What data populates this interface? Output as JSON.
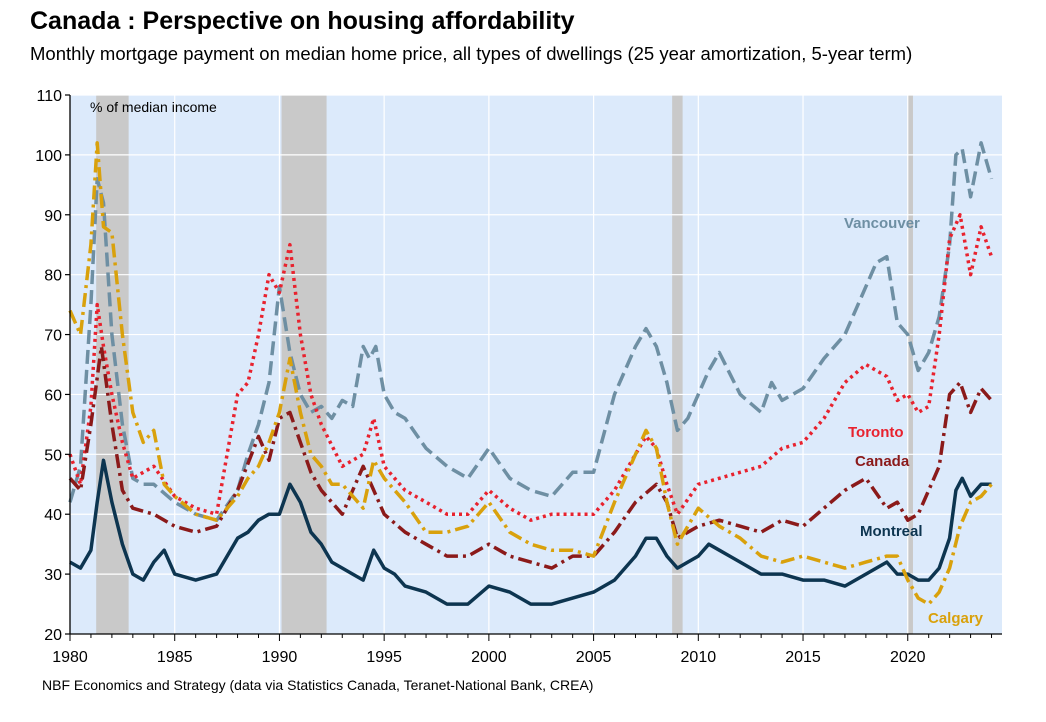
{
  "title": "Canada : Perspective on housing affordability",
  "subtitle": "Monthly mortgage payment on median home price, all types of dwellings (25 year amortization, 5-year term)",
  "source": "NBF Economics and Strategy (data via Statistics Canada, Teranet-National Bank, CREA)",
  "colors": {
    "background": "#dceafb",
    "recession": "#c9c9c9",
    "grid": "#ffffff",
    "vancouver": "#6e8fa3",
    "toronto": "#e8222e",
    "canada": "#8b1a1a",
    "montreal": "#0d3550",
    "calgary": "#d9a10c"
  },
  "chart_data": {
    "type": "line",
    "title": "Canada : Perspective on housing affordability",
    "subtitle": "Monthly mortgage payment on median home price, all types of dwellings (25 year amortization, 5-year term)",
    "ylabel": "% of median income",
    "xlim": [
      1980,
      2024.5
    ],
    "ylim": [
      20,
      110
    ],
    "x_ticks": [
      "1980",
      "1985",
      "1990",
      "1995",
      "2000",
      "2005",
      "2010",
      "2015",
      "2020"
    ],
    "y_ticks": [
      "20",
      "30",
      "40",
      "50",
      "60",
      "70",
      "80",
      "90",
      "100",
      "110"
    ],
    "grid": true,
    "recessions": [
      [
        1981.25,
        1982.8
      ],
      [
        1990.1,
        1992.25
      ],
      [
        2008.75,
        2009.25
      ],
      [
        2020.0,
        2020.25
      ]
    ],
    "series": [
      {
        "name": "Vancouver",
        "color_key": "vancouver",
        "style": "dashed",
        "x": [
          1980,
          1980.5,
          1981,
          1981.3,
          1981.6,
          1982,
          1982.5,
          1983,
          1983.5,
          1984,
          1985,
          1986,
          1987,
          1988,
          1988.5,
          1989,
          1989.5,
          1990,
          1990.5,
          1991,
          1991.5,
          1992,
          1992.5,
          1993,
          1993.5,
          1994,
          1994.3,
          1994.6,
          1995,
          1995.5,
          1996,
          1997,
          1998,
          1999,
          2000,
          2001,
          2002,
          2003,
          2004,
          2005,
          2006,
          2007,
          2007.5,
          2008,
          2008.5,
          2009,
          2009.5,
          2010,
          2010.5,
          2011,
          2012,
          2013,
          2013.5,
          2014,
          2015,
          2016,
          2017,
          2018,
          2018.5,
          2019,
          2019.5,
          2020,
          2020.5,
          2021,
          2021.5,
          2022,
          2022.3,
          2022.6,
          2023,
          2023.5,
          2024
        ],
        "y": [
          42,
          48,
          75,
          96,
          92,
          70,
          55,
          46,
          45,
          45,
          42,
          40,
          39,
          44,
          50,
          55,
          62,
          78,
          67,
          60,
          57,
          58,
          56,
          59,
          58,
          68,
          66,
          68,
          60,
          57,
          56,
          51,
          48,
          46,
          51,
          46,
          44,
          43,
          47,
          47,
          60,
          68,
          71,
          68,
          62,
          54,
          56,
          60,
          64,
          67,
          60,
          57,
          62,
          59,
          61,
          66,
          70,
          78,
          82,
          83,
          72,
          70,
          64,
          67,
          73,
          85,
          100,
          101,
          93,
          102,
          96
        ]
      },
      {
        "name": "Toronto",
        "color_key": "toronto",
        "style": "dotted",
        "x": [
          1980,
          1980.5,
          1981,
          1981.3,
          1981.6,
          1982,
          1982.5,
          1983,
          1983.5,
          1984,
          1985,
          1986,
          1987,
          1988,
          1988.5,
          1989,
          1989.5,
          1990,
          1990.5,
          1991,
          1991.5,
          1992,
          1993,
          1994,
          1994.5,
          1995,
          1996,
          1997,
          1998,
          1999,
          2000,
          2001,
          2002,
          2003,
          2004,
          2005,
          2006,
          2007,
          2007.5,
          2008,
          2008.5,
          2009,
          2010,
          2011,
          2012,
          2013,
          2014,
          2015,
          2016,
          2017,
          2018,
          2019,
          2019.5,
          2020,
          2020.5,
          2021,
          2021.5,
          2022,
          2022.5,
          2023,
          2023.5,
          2024
        ],
        "y": [
          50,
          45,
          58,
          75,
          68,
          60,
          52,
          46,
          47,
          48,
          43,
          41,
          40,
          60,
          62,
          70,
          80,
          77,
          85,
          70,
          60,
          55,
          48,
          50,
          56,
          48,
          44,
          42,
          40,
          40,
          44,
          41,
          39,
          40,
          40,
          40,
          44,
          50,
          53,
          51,
          45,
          40,
          45,
          46,
          47,
          48,
          51,
          52,
          56,
          62,
          65,
          63,
          59,
          60,
          57,
          58,
          70,
          86,
          90,
          80,
          88,
          83
        ]
      },
      {
        "name": "Canada",
        "color_key": "canada",
        "style": "dashdot",
        "x": [
          1980,
          1980.5,
          1981,
          1981.5,
          1982,
          1982.5,
          1983,
          1984,
          1985,
          1986,
          1987,
          1988,
          1989,
          1989.5,
          1990,
          1990.5,
          1991,
          1991.5,
          1992,
          1993,
          1994,
          1995,
          1996,
          1997,
          1998,
          1999,
          2000,
          2001,
          2002,
          2003,
          2004,
          2005,
          2006,
          2007,
          2008,
          2008.5,
          2009,
          2010,
          2011,
          2012,
          2013,
          2014,
          2015,
          2016,
          2017,
          2018,
          2019,
          2019.5,
          2020,
          2020.5,
          2021,
          2021.5,
          2022,
          2022.5,
          2023,
          2023.5,
          2024
        ],
        "y": [
          46,
          44,
          55,
          68,
          55,
          44,
          41,
          40,
          38,
          37,
          38,
          44,
          53,
          49,
          56,
          57,
          52,
          47,
          44,
          40,
          48,
          40,
          37,
          35,
          33,
          33,
          35,
          33,
          32,
          31,
          33,
          33,
          37,
          42,
          45,
          42,
          36,
          38,
          39,
          38,
          37,
          39,
          38,
          41,
          44,
          46,
          41,
          42,
          39,
          40,
          44,
          48,
          60,
          62,
          57,
          61,
          59
        ]
      },
      {
        "name": "Montreal",
        "color_key": "montreal",
        "style": "solid",
        "x": [
          1980,
          1980.5,
          1981,
          1981.3,
          1981.6,
          1982,
          1982.5,
          1983,
          1983.5,
          1984,
          1984.5,
          1985,
          1986,
          1987,
          1988,
          1988.5,
          1989,
          1989.5,
          1990,
          1990.5,
          1991,
          1991.5,
          1992,
          1992.5,
          1993,
          1993.5,
          1994,
          1994.5,
          1995,
          1995.5,
          1996,
          1997,
          1998,
          1999,
          2000,
          2001,
          2002,
          2003,
          2004,
          2005,
          2006,
          2007,
          2007.5,
          2008,
          2008.5,
          2009,
          2009.5,
          2010,
          2010.5,
          2011,
          2011.5,
          2012,
          2013,
          2014,
          2015,
          2016,
          2017,
          2018,
          2019,
          2019.5,
          2020,
          2020.5,
          2021,
          2021.5,
          2022,
          2022.3,
          2022.6,
          2023,
          2023.5,
          2024
        ],
        "y": [
          32,
          31,
          34,
          42,
          49,
          42,
          35,
          30,
          29,
          32,
          34,
          30,
          29,
          30,
          36,
          37,
          39,
          40,
          40,
          45,
          42,
          37,
          35,
          32,
          31,
          30,
          29,
          34,
          31,
          30,
          28,
          27,
          25,
          25,
          28,
          27,
          25,
          25,
          26,
          27,
          29,
          33,
          36,
          36,
          33,
          31,
          32,
          33,
          35,
          34,
          33,
          32,
          30,
          30,
          29,
          29,
          28,
          30,
          32,
          30,
          30,
          29,
          29,
          31,
          36,
          44,
          46,
          43,
          45,
          45
        ]
      },
      {
        "name": "Calgary",
        "color_key": "calgary",
        "style": "dashdot",
        "x": [
          1980,
          1980.5,
          1981,
          1981.3,
          1981.6,
          1982,
          1982.5,
          1983,
          1983.5,
          1984,
          1984.5,
          1985,
          1986,
          1987,
          1988,
          1988.5,
          1989,
          1989.5,
          1990,
          1990.5,
          1991,
          1991.5,
          1992,
          1992.5,
          1993,
          1994,
          1994.5,
          1995,
          1996,
          1997,
          1998,
          1999,
          2000,
          2001,
          2002,
          2003,
          2004,
          2005,
          2006,
          2007,
          2007.5,
          2008,
          2008.5,
          2009,
          2010,
          2011,
          2012,
          2013,
          2014,
          2015,
          2016,
          2017,
          2018,
          2019,
          2019.5,
          2020,
          2020.5,
          2021,
          2021.5,
          2022,
          2022.5,
          2023,
          2023.5,
          2024
        ],
        "y": [
          74,
          70,
          85,
          102,
          88,
          87,
          70,
          57,
          52,
          54,
          45,
          43,
          40,
          39,
          43,
          46,
          48,
          52,
          57,
          66,
          57,
          50,
          48,
          45,
          45,
          41,
          49,
          46,
          42,
          37,
          37,
          38,
          42,
          37,
          35,
          34,
          34,
          33,
          42,
          50,
          54,
          51,
          42,
          35,
          41,
          38,
          36,
          33,
          32,
          33,
          32,
          31,
          32,
          33,
          33,
          29,
          26,
          25,
          27,
          31,
          38,
          42,
          43,
          45
        ]
      }
    ],
    "series_labels": [
      "Vancouver",
      "Toronto",
      "Canada",
      "Montreal",
      "Calgary"
    ],
    "annotations": [
      "% of median income"
    ]
  }
}
